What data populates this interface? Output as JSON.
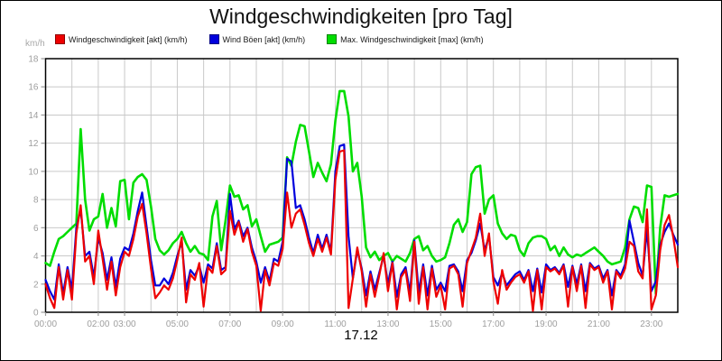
{
  "chart_data": {
    "type": "line",
    "title": "Windgeschwindigkeiten [pro Tag]",
    "ylabel": "km/h",
    "xlabel": "17.12",
    "ylim": [
      0,
      18
    ],
    "xlim_hours": [
      0,
      24
    ],
    "grid": true,
    "legend_position": "top",
    "y_ticks": [
      0,
      2,
      4,
      6,
      8,
      10,
      12,
      14,
      16,
      18
    ],
    "x_tick_hours": [
      0,
      2,
      3,
      5,
      7,
      9,
      11,
      13,
      15,
      17,
      19,
      21,
      23
    ],
    "x_tick_labels": [
      "00:00",
      "02:00",
      "03:00",
      "05:00",
      "07:00",
      "09:00",
      "11:00",
      "13:00",
      "15:00",
      "17:00",
      "19:00",
      "21:00",
      "23:00"
    ],
    "sample_interval_minutes": 10,
    "series": [
      {
        "name": "Windgeschwindigkeit [akt] (km/h)",
        "color": "#ee0000",
        "values": [
          2.0,
          1.0,
          0.3,
          3.2,
          0.9,
          3.0,
          0.9,
          5.6,
          7.6,
          3.6,
          4.0,
          2.0,
          5.8,
          3.8,
          1.6,
          3.6,
          1.2,
          3.2,
          4.3,
          4.0,
          5.2,
          6.8,
          7.7,
          5.6,
          3.1,
          1.0,
          1.4,
          1.9,
          1.6,
          2.4,
          3.7,
          5.3,
          0.7,
          2.7,
          2.3,
          3.5,
          0.4,
          3.2,
          2.8,
          4.7,
          2.7,
          3.0,
          7.2,
          5.5,
          6.4,
          5.0,
          5.9,
          4.3,
          3.3,
          0.1,
          3.0,
          1.9,
          3.5,
          3.3,
          4.5,
          8.5,
          6.0,
          7.0,
          7.3,
          6.2,
          4.9,
          4.0,
          5.2,
          4.3,
          5.3,
          4.1,
          9.4,
          11.4,
          11.5,
          0.3,
          2.4,
          4.6,
          2.9,
          0.4,
          2.7,
          1.1,
          2.6,
          4.2,
          1.5,
          3.5,
          0.2,
          2.5,
          3.0,
          0.8,
          5.0,
          0.6,
          3.2,
          0.2,
          3.1,
          1.1,
          1.9,
          0.2,
          3.1,
          3.3,
          2.7,
          0.4,
          3.5,
          4.4,
          5.3,
          7.0,
          4.0,
          5.6,
          2.2,
          0.6,
          3.0,
          1.6,
          2.1,
          2.5,
          2.7,
          2.1,
          2.9,
          0.1,
          3.0,
          0.2,
          3.2,
          2.9,
          3.1,
          2.7,
          3.3,
          0.4,
          3.2,
          1.5,
          3.3,
          0.3,
          3.4,
          3.0,
          3.2,
          2.1,
          2.9,
          0.2,
          2.9,
          2.4,
          3.1,
          5.0,
          4.7,
          2.9,
          2.4,
          7.3,
          0.2,
          1.2,
          4.4,
          6.2,
          6.9,
          5.3,
          3.2
        ]
      },
      {
        "name": "Wind Böen [akt] (km/h)",
        "color": "#0000dd",
        "values": [
          2.3,
          1.5,
          0.9,
          3.4,
          1.3,
          3.2,
          1.6,
          6.0,
          7.3,
          4.0,
          4.3,
          2.5,
          5.3,
          4.2,
          2.3,
          3.9,
          1.8,
          3.8,
          4.6,
          4.4,
          5.6,
          7.2,
          8.5,
          6.1,
          3.7,
          1.9,
          1.9,
          2.4,
          2.0,
          2.8,
          4.0,
          5.0,
          1.6,
          3.0,
          2.6,
          3.3,
          2.1,
          3.4,
          3.1,
          4.9,
          3.0,
          3.2,
          8.4,
          5.9,
          6.5,
          5.4,
          6.0,
          4.6,
          3.6,
          2.1,
          3.2,
          2.2,
          3.8,
          3.6,
          5.0,
          10.9,
          10.7,
          7.4,
          7.6,
          6.6,
          5.3,
          4.2,
          5.5,
          4.5,
          5.5,
          4.3,
          10.0,
          11.8,
          11.9,
          5.4,
          2.4,
          4.4,
          3.1,
          1.2,
          2.9,
          1.6,
          2.8,
          4.0,
          2.0,
          3.6,
          1.1,
          2.7,
          3.2,
          1.4,
          5.1,
          1.4,
          3.4,
          1.2,
          3.3,
          1.6,
          2.1,
          1.5,
          3.3,
          3.4,
          2.9,
          1.5,
          3.7,
          4.2,
          5.1,
          6.3,
          4.4,
          5.4,
          2.5,
          1.9,
          2.8,
          1.9,
          2.3,
          2.7,
          2.9,
          2.3,
          3.0,
          1.5,
          3.1,
          1.4,
          3.4,
          3.0,
          3.2,
          2.8,
          3.4,
          1.8,
          3.3,
          2.0,
          3.4,
          1.5,
          3.5,
          3.1,
          3.3,
          2.4,
          3.0,
          1.2,
          3.0,
          2.6,
          3.4,
          6.5,
          5.0,
          3.5,
          2.6,
          5.9,
          1.5,
          2.2,
          4.8,
          5.7,
          6.3,
          5.5,
          4.8
        ]
      },
      {
        "name": "Max. Windgeschwindigkeit [max] (km/h)",
        "color": "#00dd00",
        "values": [
          3.5,
          3.3,
          4.3,
          5.2,
          5.4,
          5.7,
          6.0,
          6.3,
          13.0,
          8.0,
          5.8,
          6.6,
          6.8,
          8.4,
          6.0,
          7.4,
          6.1,
          9.3,
          9.4,
          6.6,
          9.2,
          9.6,
          9.8,
          9.4,
          7.5,
          5.2,
          4.4,
          4.1,
          4.4,
          4.9,
          5.2,
          5.7,
          4.9,
          4.3,
          4.7,
          4.2,
          4.1,
          3.7,
          6.8,
          7.9,
          4.4,
          6.5,
          9.0,
          8.2,
          8.3,
          7.3,
          7.6,
          6.1,
          6.6,
          5.4,
          4.3,
          4.8,
          4.9,
          5.0,
          5.3,
          11.0,
          10.4,
          12.1,
          13.3,
          13.2,
          11.4,
          9.6,
          10.6,
          9.9,
          9.3,
          10.5,
          13.6,
          15.7,
          15.7,
          13.9,
          10.0,
          10.6,
          8.2,
          4.6,
          3.9,
          4.3,
          3.7,
          4.0,
          4.2,
          3.6,
          4.0,
          3.8,
          3.6,
          4.2,
          5.2,
          5.4,
          4.4,
          4.7,
          4.0,
          3.6,
          3.7,
          3.9,
          4.9,
          6.2,
          6.6,
          5.7,
          6.4,
          9.8,
          10.3,
          10.4,
          7.0,
          8.0,
          8.3,
          6.3,
          5.6,
          5.2,
          5.5,
          5.4,
          4.4,
          4.0,
          4.9,
          5.3,
          5.4,
          5.4,
          5.2,
          4.4,
          4.7,
          4.0,
          4.6,
          4.1,
          3.9,
          4.1,
          4.0,
          4.2,
          4.4,
          4.6,
          4.3,
          4.0,
          3.6,
          3.4,
          3.5,
          3.6,
          4.6,
          6.6,
          7.5,
          7.4,
          6.4,
          9.0,
          8.9,
          1.3,
          6.0,
          8.3,
          8.2,
          8.3,
          8.4
        ]
      }
    ]
  }
}
